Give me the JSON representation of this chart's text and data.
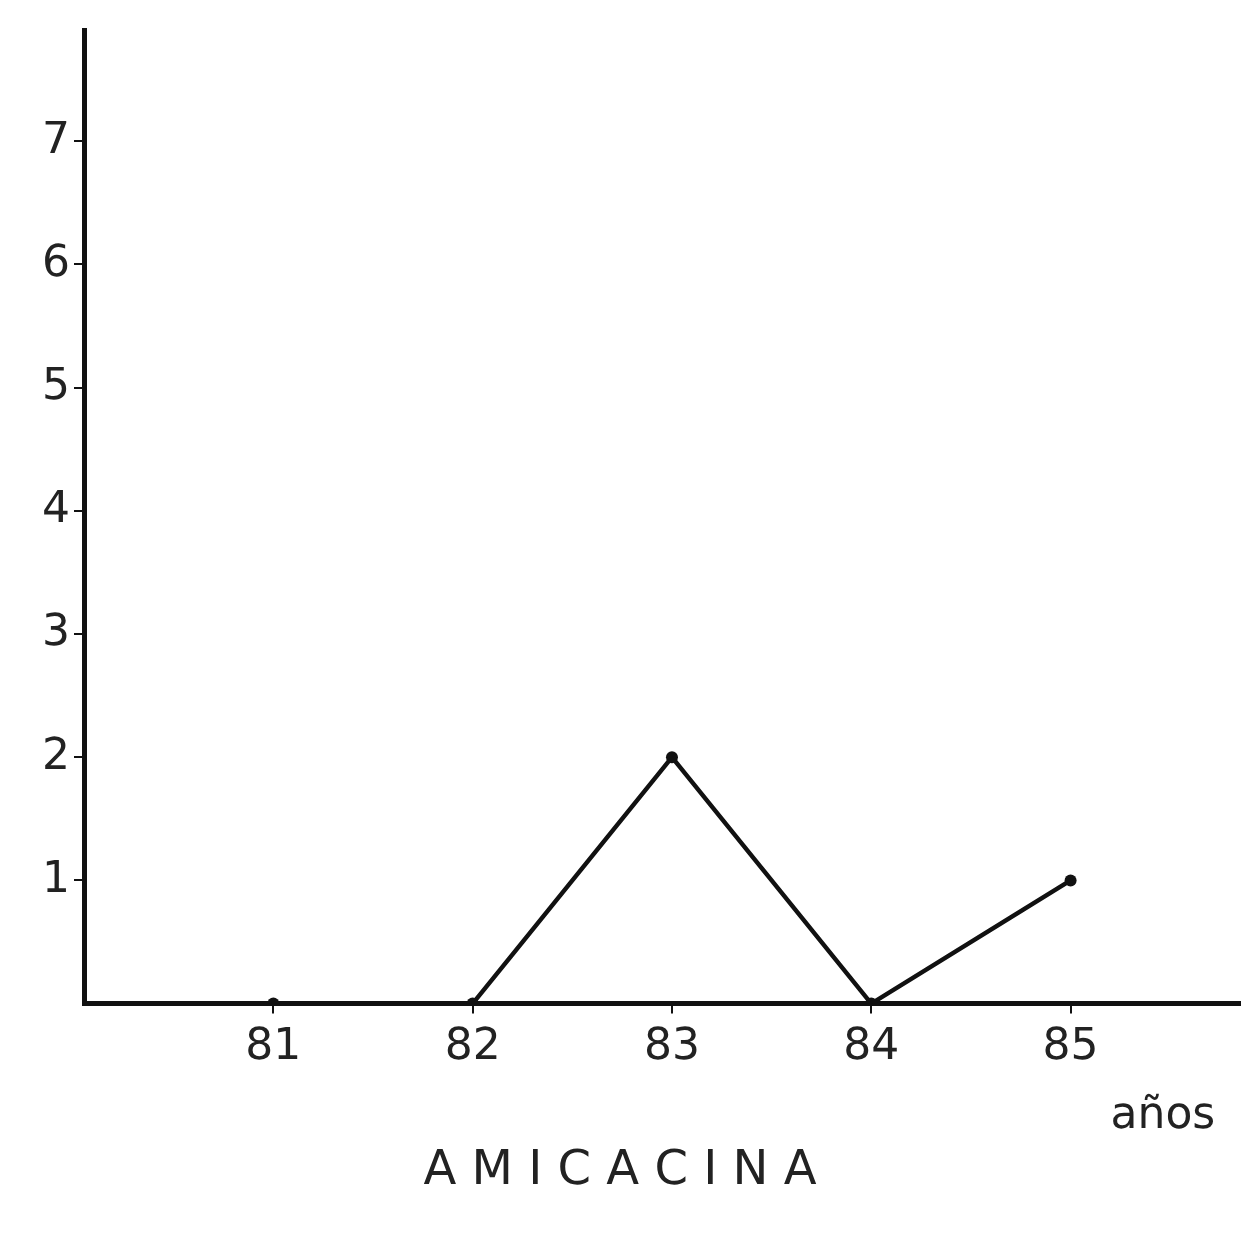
{
  "chart_data": {
    "type": "line",
    "title": "A M I C A C I N A",
    "xlabel": "años",
    "x": [
      81,
      82,
      83,
      84,
      85
    ],
    "series": [
      {
        "color": "#111111",
        "values": [
          0,
          0,
          2,
          0,
          1
        ]
      }
    ],
    "xlim": [
      80.05,
      85.85
    ],
    "xticks": [
      81,
      82,
      83,
      84,
      85
    ],
    "ylim": [
      0,
      7.9
    ],
    "yticks": [
      1,
      2,
      3,
      4,
      5,
      6,
      7
    ],
    "grid": false,
    "legend": false,
    "marker": "circle",
    "line_style": "solid"
  }
}
